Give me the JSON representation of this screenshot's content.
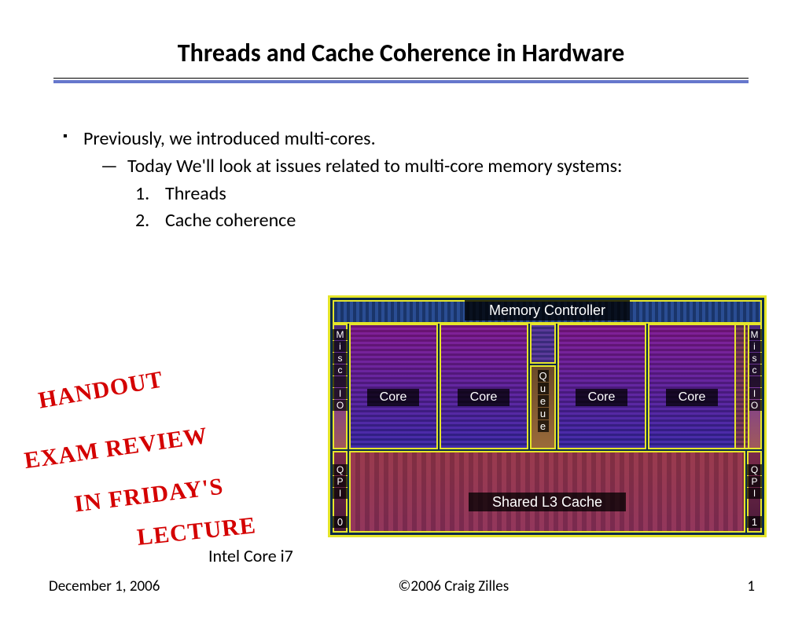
{
  "title": "Threads and Cache Coherence in Hardware",
  "bullets": {
    "b1": "Previously, we introduced multi-cores.",
    "b2": "Today We'll look at issues related to multi-core memory systems:",
    "n1_num": "1.",
    "n1_text": "Threads",
    "n2_num": "2.",
    "n2_text": "Cache coherence"
  },
  "caption": "Intel Core i7",
  "handwriting": {
    "l1": "HANDOUT",
    "l2": "EXAM REVIEW",
    "l3": "IN FRIDAY'S",
    "l4": "LECTURE"
  },
  "die": {
    "memory_controller": "Memory Controller",
    "misc_io": [
      "M",
      "i",
      "s",
      "c",
      "I",
      "O"
    ],
    "core": "Core",
    "queue": [
      "Q",
      "u",
      "e",
      "u",
      "e"
    ],
    "qpi": [
      "Q",
      "P",
      "I"
    ],
    "qpi0": "0",
    "qpi1": "1",
    "l3": "Shared L3 Cache"
  },
  "footer": {
    "date": "December 1, 2006",
    "copyright": "©2006 Craig Zilles",
    "page": "1"
  },
  "colors": {
    "accent_rule": "#6677cc",
    "handwriting": "#d40000",
    "die_border": "#e5e52a",
    "die_bg": "#0a2a4a"
  }
}
